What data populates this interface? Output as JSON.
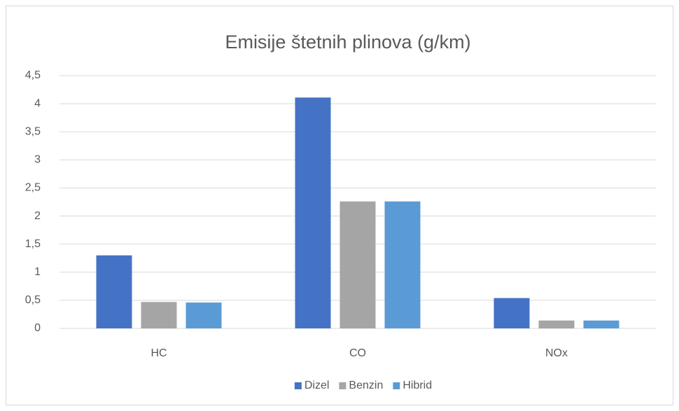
{
  "chart_data": {
    "type": "bar",
    "title": "Emisije štetnih plinova (g/km)",
    "categories": [
      "HC",
      "CO",
      "NOx"
    ],
    "series": [
      {
        "name": "Dizel",
        "color": "#4472c4",
        "values": [
          1.3,
          4.11,
          0.54
        ]
      },
      {
        "name": "Benzin",
        "color": "#a5a5a5",
        "values": [
          0.47,
          2.26,
          0.14
        ]
      },
      {
        "name": "Hibrid",
        "color": "#5b9bd5",
        "values": [
          0.46,
          2.26,
          0.14
        ]
      }
    ],
    "ylim": [
      0,
      4.5
    ],
    "yticks": [
      0,
      {
        "value": 0.5,
        "label": "0,5"
      },
      1,
      {
        "value": 1.5,
        "label": "1,5"
      },
      2,
      {
        "value": 2.5,
        "label": "2,5"
      },
      3,
      {
        "value": 3.5,
        "label": "3,5"
      },
      4,
      {
        "value": 4.5,
        "label": "4,5"
      }
    ],
    "grid": true,
    "legend": "bottom"
  }
}
